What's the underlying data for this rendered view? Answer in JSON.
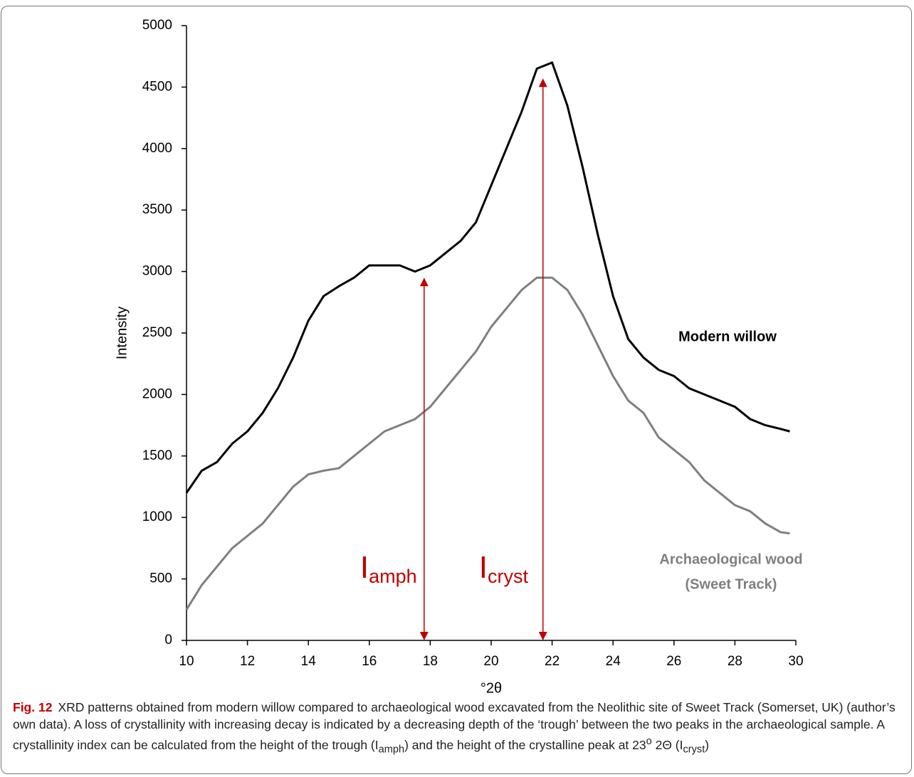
{
  "chart_data": {
    "type": "line",
    "y_label": "Intensity",
    "x_label": "°2θ",
    "x": [
      10,
      10.5,
      11,
      11.5,
      12,
      12.5,
      13,
      13.5,
      14,
      14.5,
      15,
      15.5,
      16,
      16.5,
      17,
      17.5,
      18,
      18.5,
      19,
      19.5,
      20,
      20.5,
      21,
      21.5,
      22,
      22.5,
      23,
      23.5,
      24,
      24.5,
      25,
      25.5,
      26,
      26.5,
      27,
      27.5,
      28,
      28.5,
      29,
      29.5,
      29.8
    ],
    "series": [
      {
        "name": "Modern willow",
        "color": "#000000",
        "values": [
          1200,
          1380,
          1450,
          1600,
          1700,
          1850,
          2050,
          2300,
          2600,
          2800,
          2880,
          2950,
          3050,
          3050,
          3050,
          3000,
          3050,
          3150,
          3250,
          3400,
          3700,
          4000,
          4300,
          4650,
          4700,
          4350,
          3850,
          3300,
          2800,
          2450,
          2300,
          2200,
          2150,
          2050,
          2000,
          1950,
          1900,
          1800,
          1750,
          1720,
          1700
        ]
      },
      {
        "name": "Archaeological wood",
        "name_note": "(Sweet Track)",
        "color": "#7f7f7f",
        "values": [
          250,
          450,
          600,
          750,
          850,
          950,
          1100,
          1250,
          1350,
          1380,
          1400,
          1500,
          1600,
          1700,
          1750,
          1800,
          1900,
          2050,
          2200,
          2350,
          2550,
          2700,
          2850,
          2950,
          2950,
          2850,
          2650,
          2400,
          2150,
          1950,
          1850,
          1650,
          1550,
          1450,
          1300,
          1200,
          1100,
          1050,
          950,
          880,
          870
        ]
      }
    ],
    "arrows": [
      {
        "label": "I",
        "subscript": "amph",
        "x": 17.8,
        "y": 2950
      },
      {
        "label": "I",
        "subscript": "cryst",
        "x": 21.7,
        "y": 4570
      }
    ],
    "arrow_color": "#c00000",
    "xlim": [
      10,
      30
    ],
    "xticks": [
      10,
      12,
      14,
      16,
      18,
      20,
      22,
      24,
      26,
      28,
      30
    ],
    "ylim": [
      0,
      5000
    ],
    "yticks": [
      0,
      500,
      1000,
      1500,
      2000,
      2500,
      3000,
      3500,
      4000,
      4500,
      5000
    ],
    "grid": false
  },
  "caption": {
    "label": "Fig. 12",
    "segments": [
      "XRD patterns obtained from modern willow compared to archaeological wood excavated from the Neolithic site of Sweet Track (Somerset, UK) (author’s own data). A loss of crystallinity with increasing decay is indicated by a decreasing depth of the ‘trough’ between the two peaks in the archaeological sample. A crystallinity index can be calculated from the height of the trough (I",
      "amph",
      ") and the height of the crystalline peak at 23",
      "o",
      " 2Θ (I",
      "cryst",
      ")"
    ]
  }
}
